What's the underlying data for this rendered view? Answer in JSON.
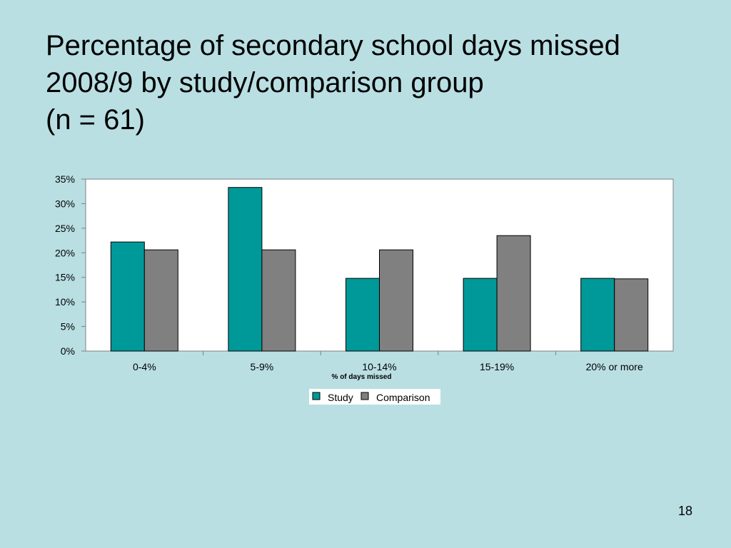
{
  "slide": {
    "title_lines": [
      "Percentage of secondary school days missed",
      "2008/9 by study/comparison group",
      "(n = 61)"
    ],
    "page_number": "18"
  },
  "chart_data": {
    "type": "bar",
    "title": "",
    "xlabel": "% of days missed",
    "ylabel": "",
    "categories": [
      "0-4%",
      "5-9%",
      "10-14%",
      "15-19%",
      "20% or more"
    ],
    "series": [
      {
        "name": "Study",
        "values": [
          22.2,
          33.3,
          14.8,
          14.8,
          14.8
        ],
        "color": "#009999"
      },
      {
        "name": "Comparison",
        "values": [
          20.6,
          20.6,
          20.6,
          23.5,
          14.7
        ],
        "color": "#808080"
      }
    ],
    "ylim": [
      0,
      35
    ],
    "yticks": [
      "0%",
      "5%",
      "10%",
      "15%",
      "20%",
      "25%",
      "30%",
      "35%"
    ],
    "grid": false,
    "legend": "bottom-center"
  }
}
